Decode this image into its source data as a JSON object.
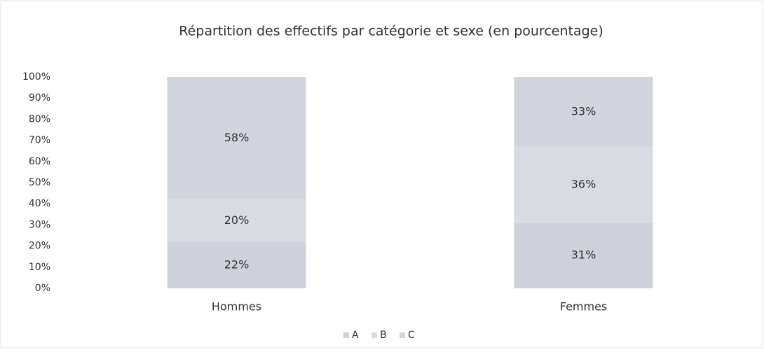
{
  "chart_data": {
    "type": "bar",
    "stacked": true,
    "title": "Répartition des effectifs par catégorie et sexe (en pourcentage)",
    "categories": [
      "Hommes",
      "Femmes"
    ],
    "series": [
      {
        "name": "A",
        "color": "#cfd2db",
        "values": [
          22,
          31
        ],
        "value_labels": [
          "22%",
          "31%"
        ]
      },
      {
        "name": "B",
        "color": "#d9dbe3",
        "values": [
          20,
          36
        ],
        "value_labels": [
          "20%",
          "36%"
        ]
      },
      {
        "name": "C",
        "color": "#d3d5de",
        "values": [
          58,
          33
        ],
        "value_labels": [
          "58%",
          "33%"
        ]
      }
    ],
    "ylim": [
      0,
      100
    ],
    "yticks": [
      {
        "value": 0,
        "label": "0%"
      },
      {
        "value": 10,
        "label": "10%"
      },
      {
        "value": 20,
        "label": "20%"
      },
      {
        "value": 30,
        "label": "30%"
      },
      {
        "value": 40,
        "label": "40%"
      },
      {
        "value": 50,
        "label": "50%"
      },
      {
        "value": 60,
        "label": "60%"
      },
      {
        "value": 70,
        "label": "70%"
      },
      {
        "value": 80,
        "label": "80%"
      },
      {
        "value": 90,
        "label": "90%"
      },
      {
        "value": 100,
        "label": "100%"
      }
    ],
    "legend": "bottom"
  }
}
